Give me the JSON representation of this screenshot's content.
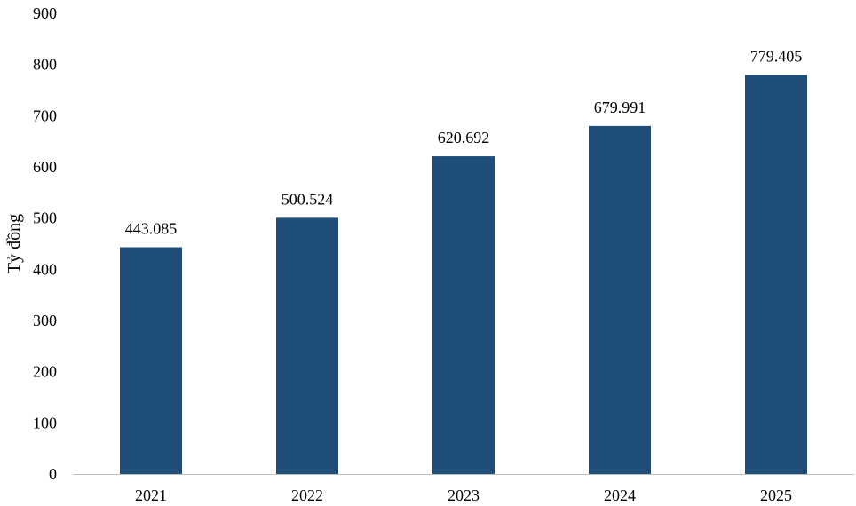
{
  "chart_data": {
    "type": "bar",
    "categories": [
      "2021",
      "2022",
      "2023",
      "2024",
      "2025"
    ],
    "values": [
      443.085,
      500.524,
      620.692,
      679.991,
      779.405
    ],
    "value_labels": [
      "443.085",
      "500.524",
      "620.692",
      "679.991",
      "779.405"
    ],
    "ylabel": "Tỷ đồng",
    "xlabel": "",
    "ylim": [
      0,
      900
    ],
    "yticks": [
      0,
      100,
      200,
      300,
      400,
      500,
      600,
      700,
      800,
      900
    ],
    "ytick_labels": [
      "0",
      "100",
      "200",
      "300",
      "400",
      "500",
      "600",
      "700",
      "800",
      "900"
    ],
    "grid": false,
    "legend": "none",
    "bar_color": "#1f4e79",
    "axis_color": "#bfbfbf"
  }
}
